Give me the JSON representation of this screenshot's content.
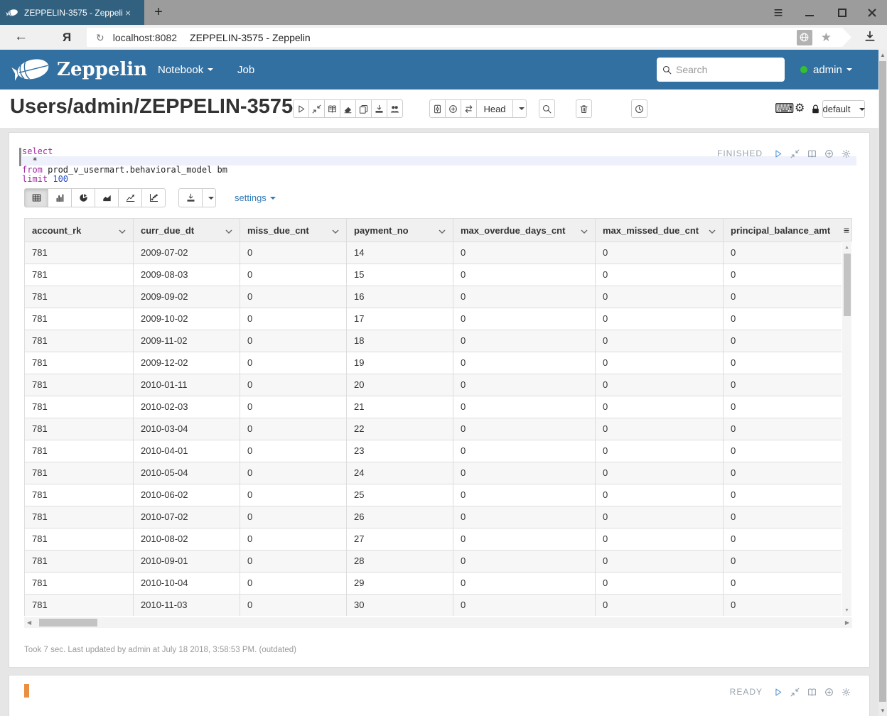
{
  "browser": {
    "tab_title": "ZEPPELIN-3575 - Zeppeli",
    "tab_close": "×",
    "new_tab": "+",
    "back_arrow": "←",
    "browser_logo": "Я",
    "reload": "↻",
    "url_host": "localhost:8082",
    "page_title": "ZEPPELIN-3575 - Zeppelin",
    "star": "★"
  },
  "navbar": {
    "brand": "Zeppelin",
    "menus": [
      {
        "label": "Notebook",
        "caret": true
      },
      {
        "label": "Job",
        "caret": false
      }
    ],
    "search_placeholder": "Search",
    "user_name": "admin",
    "colors": {
      "background": "#3270a2",
      "user_status_dot": "#35c12e"
    }
  },
  "note": {
    "title": "Users/admin/ZEPPELIN-3575",
    "toolbar_group1": [
      "run-all-icon",
      "shrink-icon",
      "show-hide-code-icon",
      "clear-output-icon",
      "clone-icon",
      "export-icon",
      "permissions-icon"
    ],
    "toolbar_group2": [
      "commit-icon",
      "revisions-icon",
      "compare-icon"
    ],
    "head_label": "Head",
    "search_button_icon": "search-icon",
    "trash_button_icon": "trash-icon",
    "schedule_button_icon": "schedule-icon",
    "right_icons": [
      "keyboard-icon",
      "gear-icon",
      "lock-icon"
    ],
    "interpreter_label": "default"
  },
  "paragraph1": {
    "status": "FINISHED",
    "status_icons": [
      "run-icon",
      "shrink-icon",
      "output-icon",
      "add-icon",
      "settings-icon"
    ],
    "code_lines": [
      {
        "active": false,
        "tokens": [
          {
            "text": "select",
            "type": "keyword"
          }
        ]
      },
      {
        "active": true,
        "tokens": [
          {
            "text": "  *",
            "type": "plain"
          }
        ]
      },
      {
        "active": false,
        "tokens": [
          {
            "text": "from",
            "type": "keyword"
          },
          {
            "text": " prod_v_usermart.behavioral_model bm",
            "type": "plain"
          }
        ]
      },
      {
        "active": false,
        "tokens": [
          {
            "text": "limit",
            "type": "keyword"
          },
          {
            "text": " ",
            "type": "plain"
          },
          {
            "text": "100",
            "type": "number"
          }
        ]
      }
    ],
    "chart_buttons": [
      {
        "icon": "table-icon",
        "active": true
      },
      {
        "icon": "bar-chart-icon",
        "active": false
      },
      {
        "icon": "pie-chart-icon",
        "active": false
      },
      {
        "icon": "area-chart-icon",
        "active": false
      },
      {
        "icon": "line-chart-icon",
        "active": false
      },
      {
        "icon": "scatter-chart-icon",
        "active": false
      }
    ],
    "download_icon": "download-icon",
    "settings_label": "settings",
    "footer": "Took 7 sec. Last updated by admin at July 18 2018, 3:58:53 PM. (outdated)"
  },
  "table": {
    "columns": [
      "account_rk",
      "curr_due_dt",
      "miss_due_cnt",
      "payment_no",
      "max_overdue_days_cnt",
      "max_missed_due_cnt",
      "principal_balance_amt"
    ],
    "menu_icon": "≡",
    "rows": [
      [
        "781",
        "2009-07-02",
        "0",
        "14",
        "0",
        "0",
        "0"
      ],
      [
        "781",
        "2009-08-03",
        "0",
        "15",
        "0",
        "0",
        "0"
      ],
      [
        "781",
        "2009-09-02",
        "0",
        "16",
        "0",
        "0",
        "0"
      ],
      [
        "781",
        "2009-10-02",
        "0",
        "17",
        "0",
        "0",
        "0"
      ],
      [
        "781",
        "2009-11-02",
        "0",
        "18",
        "0",
        "0",
        "0"
      ],
      [
        "781",
        "2009-12-02",
        "0",
        "19",
        "0",
        "0",
        "0"
      ],
      [
        "781",
        "2010-01-11",
        "0",
        "20",
        "0",
        "0",
        "0"
      ],
      [
        "781",
        "2010-02-03",
        "0",
        "21",
        "0",
        "0",
        "0"
      ],
      [
        "781",
        "2010-03-04",
        "0",
        "22",
        "0",
        "0",
        "0"
      ],
      [
        "781",
        "2010-04-01",
        "0",
        "23",
        "0",
        "0",
        "0"
      ],
      [
        "781",
        "2010-05-04",
        "0",
        "24",
        "0",
        "0",
        "0"
      ],
      [
        "781",
        "2010-06-02",
        "0",
        "25",
        "0",
        "0",
        "0"
      ],
      [
        "781",
        "2010-07-02",
        "0",
        "26",
        "0",
        "0",
        "0"
      ],
      [
        "781",
        "2010-08-02",
        "0",
        "27",
        "0",
        "0",
        "0"
      ],
      [
        "781",
        "2010-09-01",
        "0",
        "28",
        "0",
        "0",
        "0"
      ],
      [
        "781",
        "2010-10-04",
        "0",
        "29",
        "0",
        "0",
        "0"
      ],
      [
        "781",
        "2010-11-03",
        "0",
        "30",
        "0",
        "0",
        "0"
      ]
    ]
  },
  "paragraph2": {
    "status": "READY",
    "status_icons": [
      "run-icon",
      "shrink-icon",
      "output-icon",
      "add-icon",
      "settings-icon"
    ]
  }
}
